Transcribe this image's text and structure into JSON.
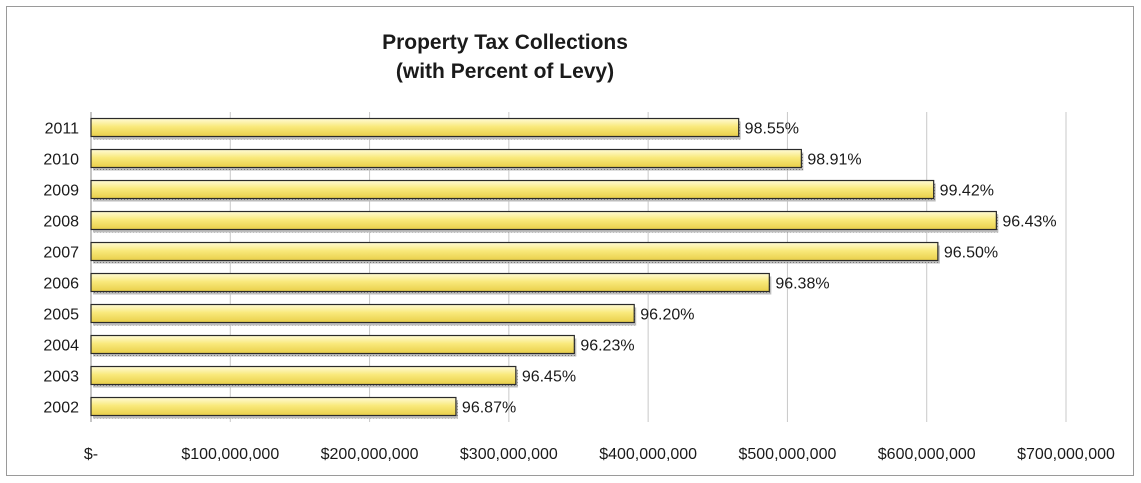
{
  "chart_data": {
    "type": "bar",
    "orientation": "horizontal",
    "title": "Property Tax Collections",
    "subtitle": "(with Percent of Levy)",
    "categories": [
      "2011",
      "2010",
      "2009",
      "2008",
      "2007",
      "2006",
      "2005",
      "2004",
      "2003",
      "2002"
    ],
    "values": [
      465000000,
      510000000,
      605000000,
      650000000,
      608000000,
      487000000,
      390000000,
      347000000,
      305000000,
      262000000
    ],
    "data_labels": [
      "98.55%",
      "98.91%",
      "99.42%",
      "96.43%",
      "96.50%",
      "96.38%",
      "96.20%",
      "96.23%",
      "96.45%",
      "96.87%"
    ],
    "xlim": [
      0,
      700000000
    ],
    "x_ticks": [
      0,
      100000000,
      200000000,
      300000000,
      400000000,
      500000000,
      600000000,
      700000000
    ],
    "x_tick_labels": [
      "$-",
      "$100,000,000",
      "$200,000,000",
      "$300,000,000",
      "$400,000,000",
      "$500,000,000",
      "$600,000,000",
      "$700,000,000"
    ],
    "xlabel": "",
    "ylabel": "",
    "grid": "vertical",
    "legend": "none",
    "bar_color": "#f7e472",
    "bar_edge_color": "#2a2a2a"
  }
}
